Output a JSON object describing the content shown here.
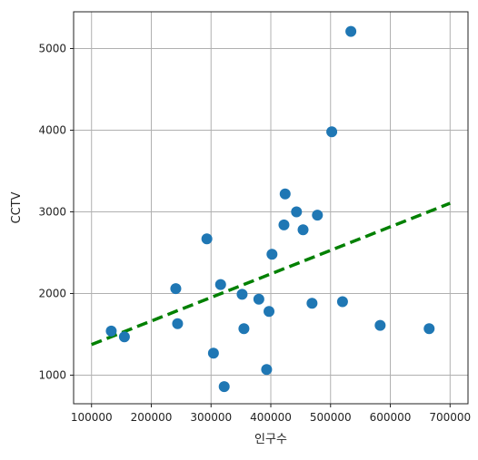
{
  "chart_data": {
    "type": "scatter",
    "xlabel": "인구수",
    "ylabel": "CCTV",
    "xlim": [
      70000,
      730000
    ],
    "ylim": [
      650,
      5450
    ],
    "grid": true,
    "xticks": [
      100000,
      200000,
      300000,
      400000,
      500000,
      600000,
      700000
    ],
    "yticks": [
      1000,
      2000,
      3000,
      4000,
      5000
    ],
    "xtick_labels": [
      "100000",
      "200000",
      "300000",
      "400000",
      "500000",
      "600000",
      "700000"
    ],
    "ytick_labels": [
      "1000",
      "2000",
      "3000",
      "4000",
      "5000"
    ],
    "points": [
      {
        "x": 133000,
        "y": 1540
      },
      {
        "x": 155000,
        "y": 1470
      },
      {
        "x": 241000,
        "y": 2060
      },
      {
        "x": 244000,
        "y": 1630
      },
      {
        "x": 293000,
        "y": 2670
      },
      {
        "x": 304000,
        "y": 1270
      },
      {
        "x": 316000,
        "y": 2110
      },
      {
        "x": 322000,
        "y": 860
      },
      {
        "x": 352000,
        "y": 1990
      },
      {
        "x": 355000,
        "y": 1570
      },
      {
        "x": 380000,
        "y": 1930
      },
      {
        "x": 393000,
        "y": 1070
      },
      {
        "x": 397000,
        "y": 1780
      },
      {
        "x": 402000,
        "y": 2480
      },
      {
        "x": 422000,
        "y": 2840
      },
      {
        "x": 424000,
        "y": 3220
      },
      {
        "x": 443000,
        "y": 3000
      },
      {
        "x": 454000,
        "y": 2780
      },
      {
        "x": 469000,
        "y": 1880
      },
      {
        "x": 478000,
        "y": 2960
      },
      {
        "x": 502000,
        "y": 3980
      },
      {
        "x": 520000,
        "y": 1900
      },
      {
        "x": 534000,
        "y": 5210
      },
      {
        "x": 583000,
        "y": 1610
      },
      {
        "x": 665000,
        "y": 1570
      }
    ],
    "trend_line": {
      "x": [
        100000,
        700000
      ],
      "y": [
        1375,
        3105
      ],
      "style": "dashed"
    },
    "colors": {
      "points": "#1f77b4",
      "trend": "#008000",
      "grid": "#b0b0b0",
      "axes": "#222222"
    }
  }
}
